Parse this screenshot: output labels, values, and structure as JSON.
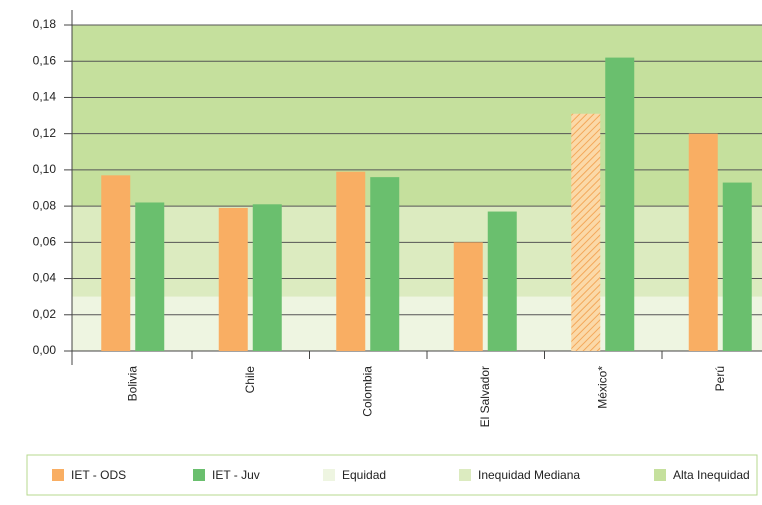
{
  "chart_data": {
    "type": "bar",
    "categories": [
      "Bolivia",
      "Chile",
      "Colombia",
      "El Salvador",
      "México*",
      "Perú"
    ],
    "series": [
      {
        "name": "IET - ODS",
        "color": "#f9ae63",
        "values": [
          0.097,
          0.079,
          0.099,
          0.06,
          0.131,
          0.12
        ],
        "hatched": [
          false,
          false,
          false,
          false,
          true,
          false
        ]
      },
      {
        "name": "IET - Juv",
        "color": "#6abf6e",
        "values": [
          0.082,
          0.081,
          0.096,
          0.077,
          0.162,
          0.093
        ]
      }
    ],
    "bands": [
      {
        "name": "Equidad",
        "from": 0,
        "to": 0.03,
        "color": "#eef5e1"
      },
      {
        "name": "Inequidad Mediana",
        "from": 0.03,
        "to": 0.08,
        "color": "#dcebc0"
      },
      {
        "name": "Alta Inequidad",
        "from": 0.08,
        "to": 0.18,
        "color": "#c5e09d"
      }
    ],
    "ylim": [
      0,
      0.18
    ],
    "yticks": [
      {
        "value": 0,
        "label": "0,00"
      },
      {
        "value": 0.02,
        "label": "0,02"
      },
      {
        "value": 0.04,
        "label": "0,04"
      },
      {
        "value": 0.06,
        "label": "0,06"
      },
      {
        "value": 0.08,
        "label": "0,08"
      },
      {
        "value": 0.1,
        "label": "0,10"
      },
      {
        "value": 0.12,
        "label": "0,12"
      },
      {
        "value": 0.14,
        "label": "0,14"
      },
      {
        "value": 0.16,
        "label": "0,16"
      },
      {
        "value": 0.18,
        "label": "0,18"
      }
    ],
    "grid": true
  }
}
